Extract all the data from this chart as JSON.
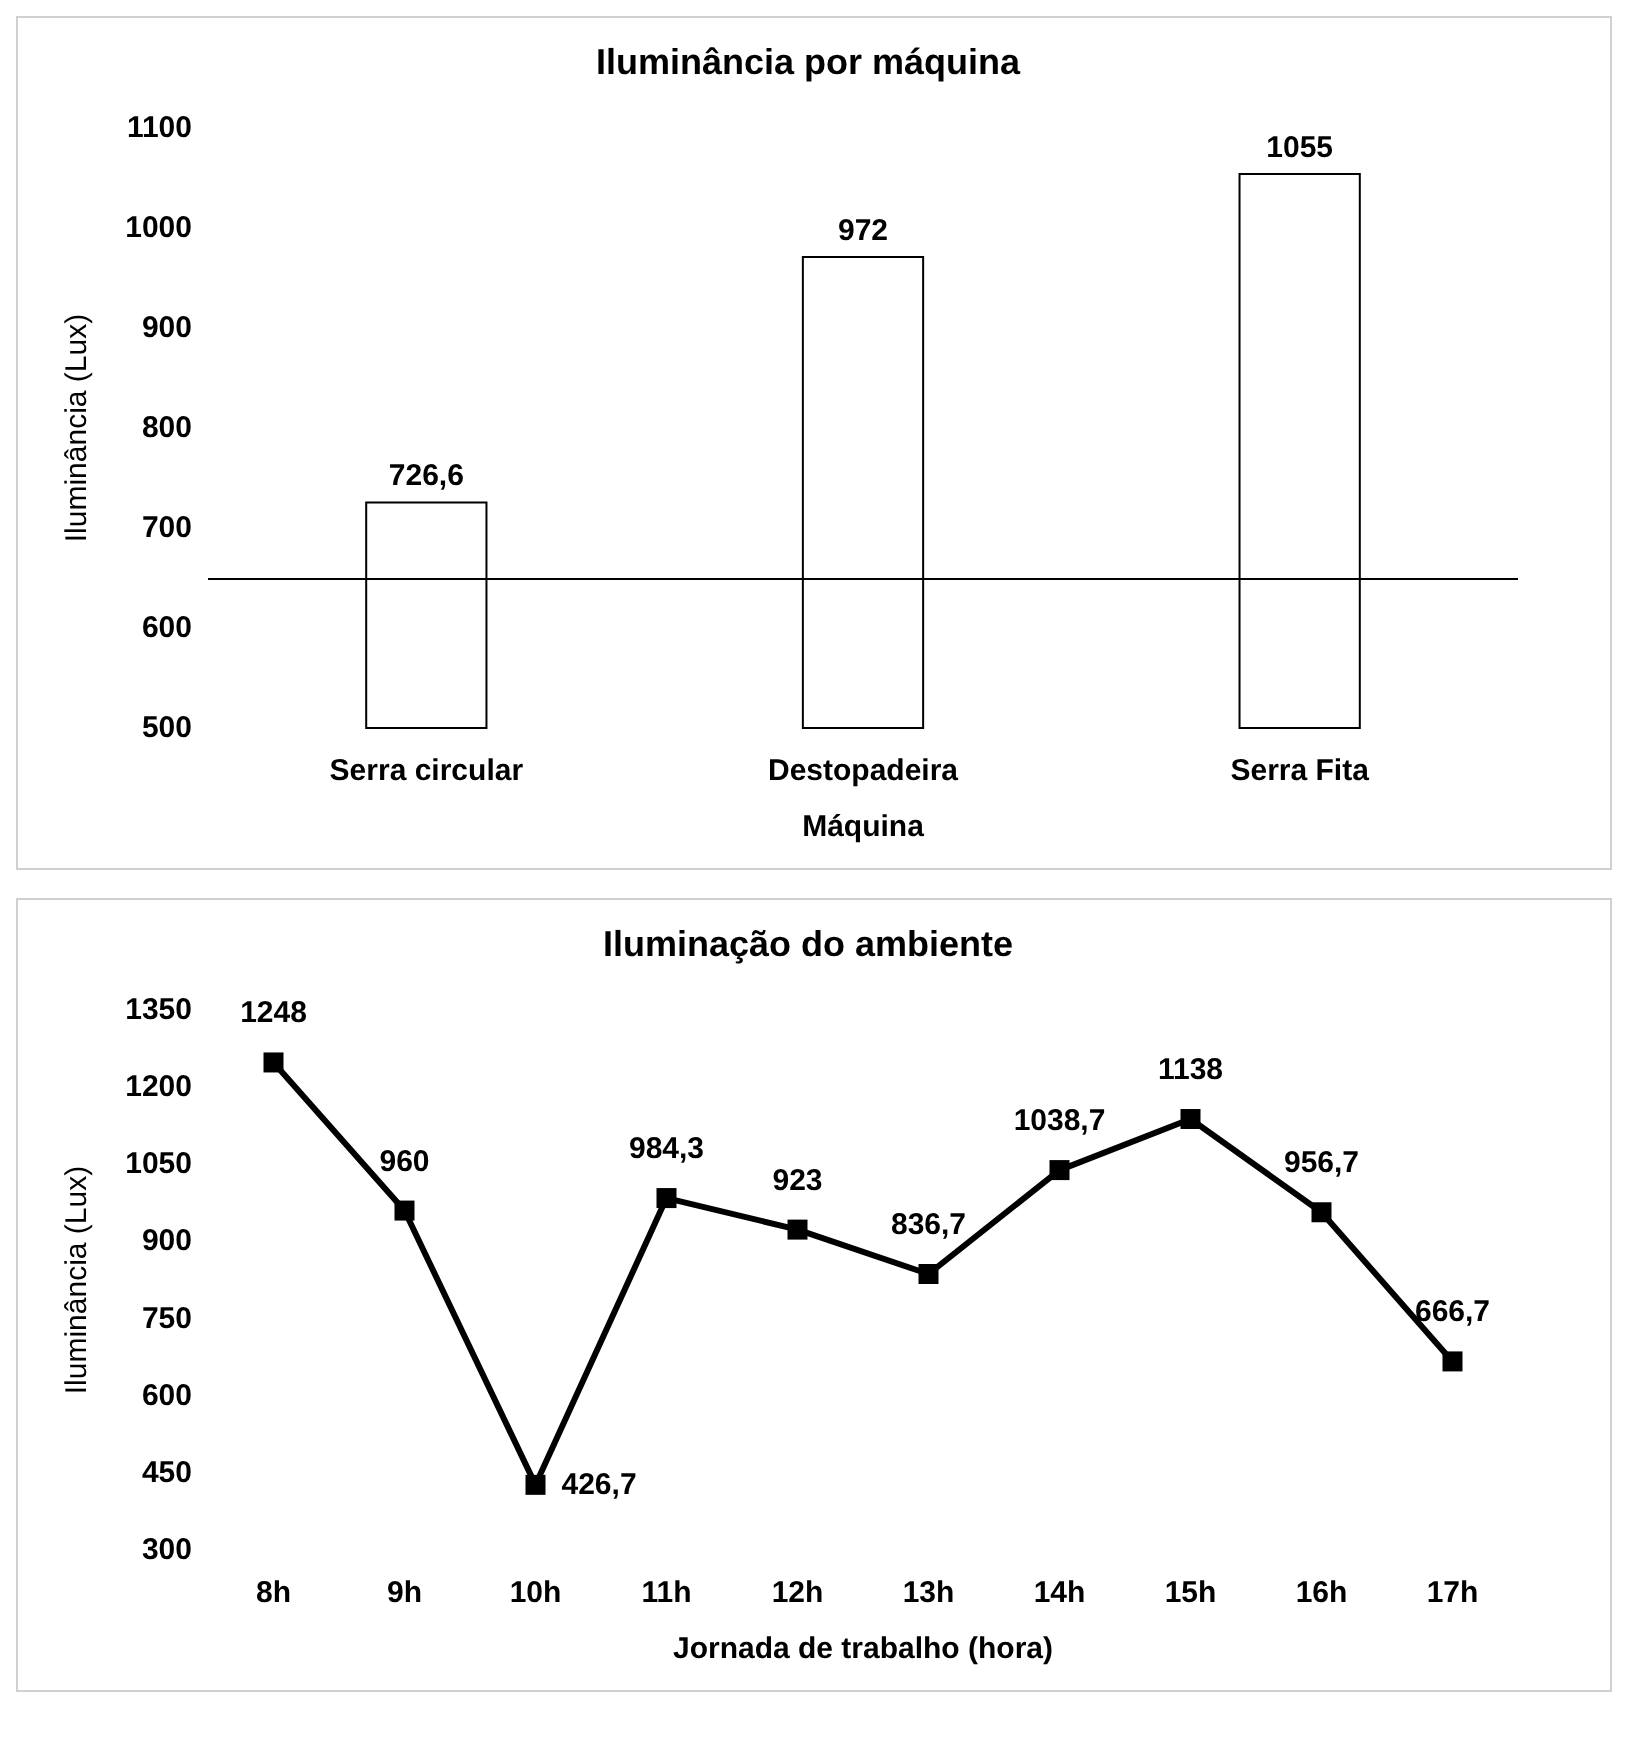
{
  "chart_data": [
    {
      "type": "bar",
      "title": "Iluminância por máquina",
      "xlabel": "Máquina",
      "ylabel": "Iluminância (Lux)",
      "categories": [
        "Serra circular",
        "Destopadeira",
        "Serra Fita"
      ],
      "values": [
        726.6,
        972,
        1055
      ],
      "value_labels": [
        "726,6",
        "972",
        "1055"
      ],
      "color": "#ffffff",
      "ylim": [
        500,
        1100
      ],
      "yticks": [
        500,
        600,
        700,
        800,
        900,
        1000,
        1100
      ],
      "ref_lines": [
        {
          "axis": "y",
          "value": 650,
          "color": "#000000"
        }
      ],
      "grid": false
    },
    {
      "type": "line",
      "title": "Iluminação do ambiente",
      "xlabel": "Jornada de trabalho (hora)",
      "ylabel": "Iluminância (Lux)",
      "categories": [
        "8h",
        "9h",
        "10h",
        "11h",
        "12h",
        "13h",
        "14h",
        "15h",
        "16h",
        "17h"
      ],
      "values": [
        1248,
        960,
        426.7,
        984.3,
        923,
        836.7,
        1038.7,
        1138,
        956.7,
        666.7
      ],
      "value_labels": [
        "1248",
        "960",
        "426,7",
        "984,3",
        "923",
        "836,7",
        "1038,7",
        "1138",
        "956,7",
        "666,7"
      ],
      "color": "#000000",
      "ylim": [
        300,
        1350
      ],
      "yticks": [
        300,
        450,
        600,
        750,
        900,
        1050,
        1200,
        1350
      ],
      "marker": "square",
      "line_style": "solid",
      "grid": false
    }
  ]
}
